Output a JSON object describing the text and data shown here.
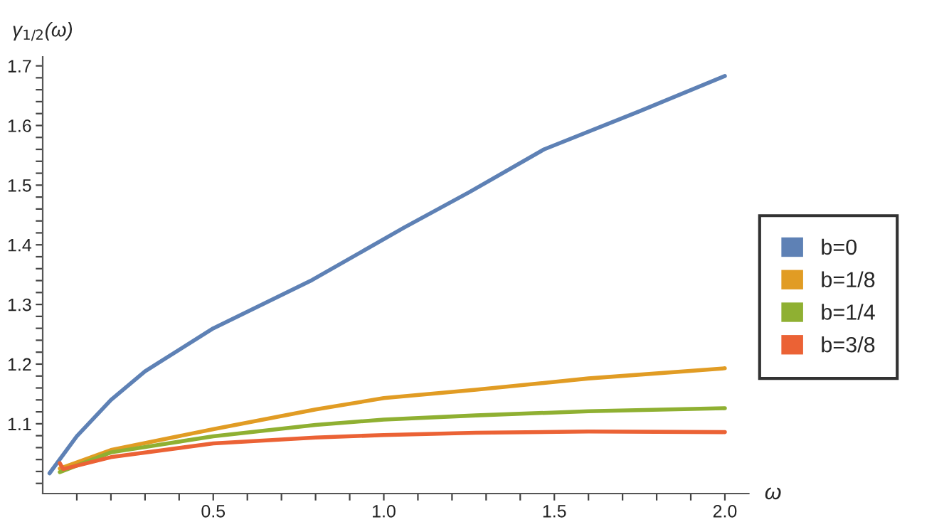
{
  "chart_data": {
    "type": "line",
    "xlabel": "ω",
    "ylabel": "γ$_{1/2}$(ω)",
    "xlim": [
      0,
      2.07
    ],
    "ylim": [
      0.983,
      1.715
    ],
    "xticks": [
      {
        "value": 0.1,
        "label": null
      },
      {
        "value": 0.2,
        "label": null
      },
      {
        "value": 0.3,
        "label": null
      },
      {
        "value": 0.4,
        "label": null
      },
      {
        "value": 0.5,
        "label": "0.5"
      },
      {
        "value": 0.6,
        "label": null
      },
      {
        "value": 0.7,
        "label": null
      },
      {
        "value": 0.8,
        "label": null
      },
      {
        "value": 0.9,
        "label": null
      },
      {
        "value": 1.0,
        "label": "1.0"
      },
      {
        "value": 1.1,
        "label": null
      },
      {
        "value": 1.2,
        "label": null
      },
      {
        "value": 1.3,
        "label": null
      },
      {
        "value": 1.4,
        "label": null
      },
      {
        "value": 1.5,
        "label": "1.5"
      },
      {
        "value": 1.6,
        "label": null
      },
      {
        "value": 1.7,
        "label": null
      },
      {
        "value": 1.8,
        "label": null
      },
      {
        "value": 1.9,
        "label": null
      },
      {
        "value": 2.0,
        "label": "2.0"
      }
    ],
    "yticks": [
      {
        "value": 1.0,
        "label": null
      },
      {
        "value": 1.02,
        "label": null
      },
      {
        "value": 1.04,
        "label": null
      },
      {
        "value": 1.06,
        "label": null
      },
      {
        "value": 1.08,
        "label": null
      },
      1.1,
      {
        "value": 1.12,
        "label": null
      },
      {
        "value": 1.14,
        "label": null
      },
      {
        "value": 1.16,
        "label": null
      },
      {
        "value": 1.18,
        "label": null
      },
      1.2,
      {
        "value": 1.22,
        "label": null
      },
      {
        "value": 1.24,
        "label": null
      },
      {
        "value": 1.26,
        "label": null
      },
      {
        "value": 1.28,
        "label": null
      },
      1.3,
      {
        "value": 1.32,
        "label": null
      },
      {
        "value": 1.34,
        "label": null
      },
      {
        "value": 1.36,
        "label": null
      },
      {
        "value": 1.38,
        "label": null
      },
      1.4,
      {
        "value": 1.42,
        "label": null
      },
      {
        "value": 1.44,
        "label": null
      },
      {
        "value": 1.46,
        "label": null
      },
      {
        "value": 1.48,
        "label": null
      },
      1.5,
      {
        "value": 1.52,
        "label": null
      },
      {
        "value": 1.54,
        "label": null
      },
      {
        "value": 1.56,
        "label": null
      },
      {
        "value": 1.58,
        "label": null
      },
      1.6,
      {
        "value": 1.62,
        "label": null
      },
      {
        "value": 1.64,
        "label": null
      },
      {
        "value": 1.66,
        "label": null
      },
      {
        "value": 1.68,
        "label": null
      },
      1.7
    ],
    "grid": false,
    "legend": "right",
    "marker": "none",
    "line_style": "solid",
    "series": [
      {
        "name": "b=0",
        "color": "#5e81b5",
        "x": [
          0.02,
          0.1,
          0.2,
          0.3,
          0.5,
          0.79,
          1.06,
          1.25,
          1.47,
          1.75,
          2.0
        ],
        "values": [
          1.017,
          1.079,
          1.14,
          1.188,
          1.26,
          1.341,
          1.429,
          1.488,
          1.56,
          1.624,
          1.683
        ]
      },
      {
        "name": "b=1/8",
        "color": "#e19c24",
        "x": [
          0.05,
          0.2,
          0.5,
          0.8,
          1.0,
          1.27,
          1.6,
          2.0
        ],
        "values": [
          1.025,
          1.056,
          1.091,
          1.124,
          1.143,
          1.157,
          1.176,
          1.193
        ]
      },
      {
        "name": "b=1/4",
        "color": "#8fb032",
        "x": [
          0.05,
          0.2,
          0.5,
          0.8,
          1.0,
          1.27,
          1.6,
          2.0
        ],
        "values": [
          1.019,
          1.052,
          1.079,
          1.098,
          1.107,
          1.114,
          1.121,
          1.126
        ]
      },
      {
        "name": "b=3/8",
        "color": "#eb6235",
        "x": [
          0.05,
          0.06,
          0.2,
          0.5,
          0.8,
          1.0,
          1.27,
          1.6,
          2.0
        ],
        "values": [
          1.034,
          1.024,
          1.044,
          1.067,
          1.077,
          1.081,
          1.085,
          1.087,
          1.086
        ]
      }
    ]
  }
}
